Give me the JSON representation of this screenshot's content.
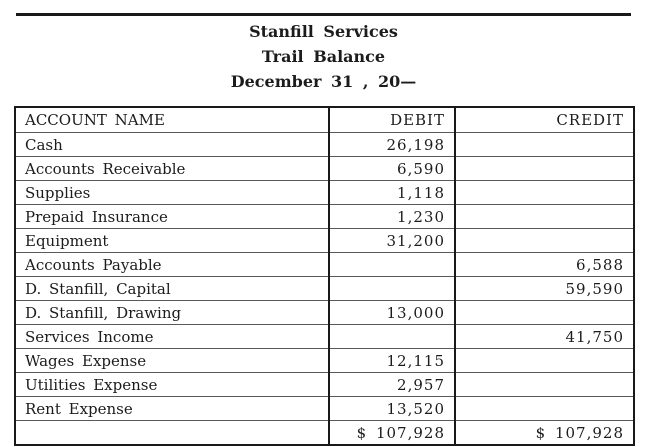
{
  "header": {
    "company": "Stanfill Services",
    "report_title": "Trail Balance",
    "date_line": "December 31 , 20—"
  },
  "table": {
    "headers": {
      "account": "ACCOUNT NAME",
      "debit": "DEBIT",
      "credit": "CREDIT"
    },
    "rows": [
      {
        "account": "Cash",
        "debit": "26,198",
        "credit": ""
      },
      {
        "account": "Accounts Receivable",
        "debit": "6,590",
        "credit": ""
      },
      {
        "account": "Supplies",
        "debit": "1,118",
        "credit": ""
      },
      {
        "account": "Prepaid Insurance",
        "debit": "1,230",
        "credit": ""
      },
      {
        "account": "Equipment",
        "debit": "31,200",
        "credit": ""
      },
      {
        "account": "Accounts Payable",
        "debit": "",
        "credit": "6,588"
      },
      {
        "account": "D. Stanfill, Capital",
        "debit": "",
        "credit": "59,590"
      },
      {
        "account": "D. Stanfill, Drawing",
        "debit": "13,000",
        "credit": ""
      },
      {
        "account": "Services Income",
        "debit": "",
        "credit": "41,750"
      },
      {
        "account": "Wages Expense",
        "debit": "12,115",
        "credit": ""
      },
      {
        "account": "Utilities Expense",
        "debit": "2,957",
        "credit": ""
      },
      {
        "account": "Rent Expense",
        "debit": "13,520",
        "credit": ""
      }
    ],
    "total": {
      "account": "",
      "debit": "$  107,928",
      "credit": "$  107,928"
    }
  },
  "colors": {
    "ink": "#1c1c1c",
    "border": "#191919",
    "paper": "#ffffff"
  }
}
